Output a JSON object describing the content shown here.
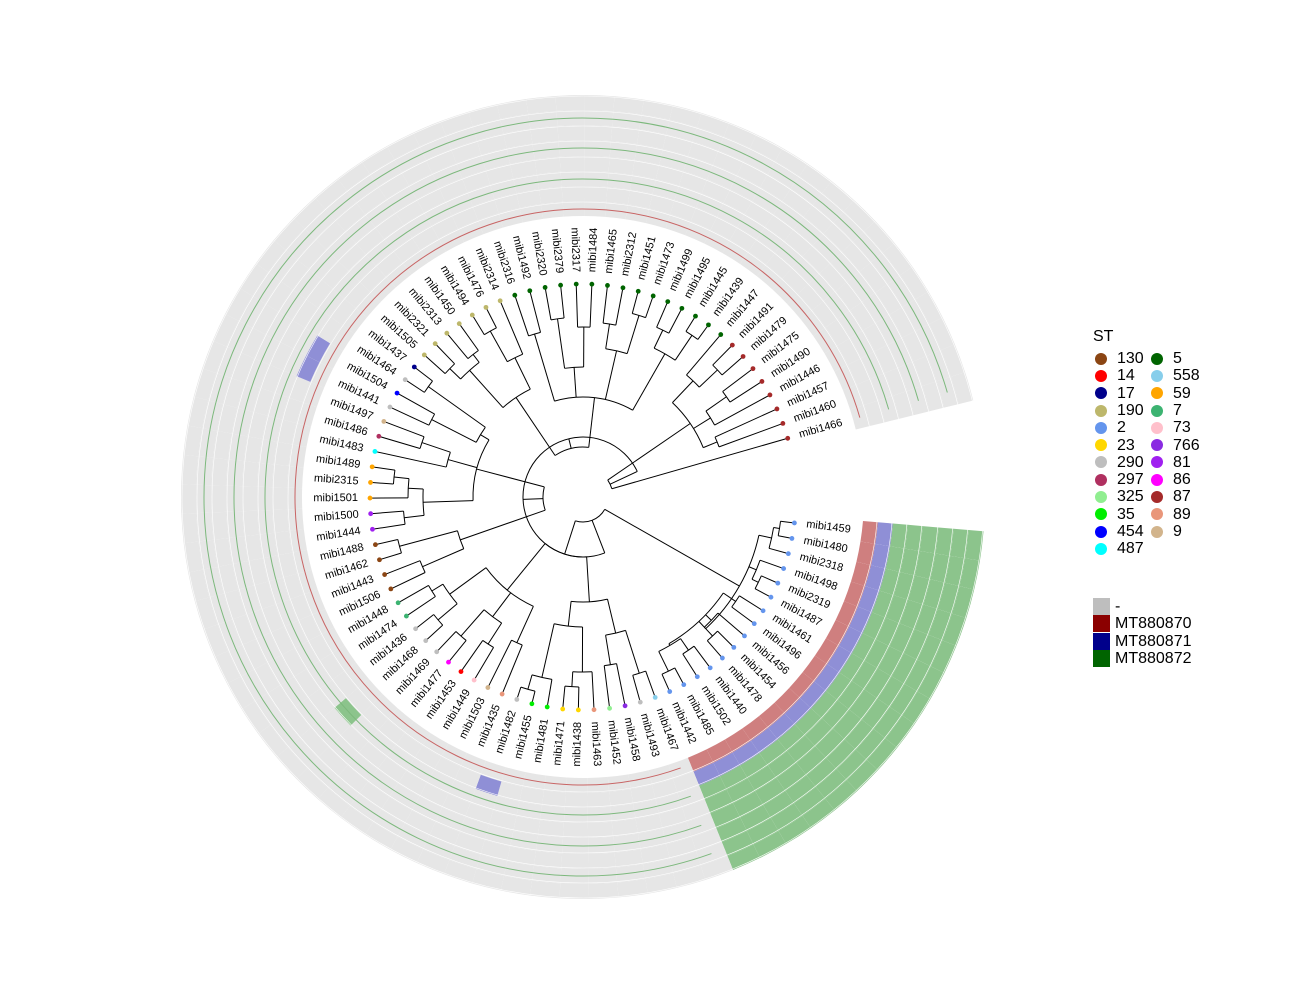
{
  "tree": {
    "leaves": [
      {
        "label": "mibi1459",
        "st": "2"
      },
      {
        "label": "mibi1480",
        "st": "2"
      },
      {
        "label": "mibi2318",
        "st": "2"
      },
      {
        "label": "mibi1498",
        "st": "2"
      },
      {
        "label": "mibi2319",
        "st": "2"
      },
      {
        "label": "mibi1487",
        "st": "2"
      },
      {
        "label": "mibi1461",
        "st": "2"
      },
      {
        "label": "mibi1496",
        "st": "2"
      },
      {
        "label": "mibi1456",
        "st": "2"
      },
      {
        "label": "mibi1454",
        "st": "2"
      },
      {
        "label": "mibi1478",
        "st": "2"
      },
      {
        "label": "mibi1440",
        "st": "2"
      },
      {
        "label": "mibi1502",
        "st": "2"
      },
      {
        "label": "mibi1485",
        "st": "2"
      },
      {
        "label": "mibi1442",
        "st": "2"
      },
      {
        "label": "mibi1467",
        "st": "558"
      },
      {
        "label": "mibi1493",
        "st": "290"
      },
      {
        "label": "mibi1458",
        "st": "766"
      },
      {
        "label": "mibi1452",
        "st": "325"
      },
      {
        "label": "mibi1463",
        "st": "89"
      },
      {
        "label": "mibi1438",
        "st": "23"
      },
      {
        "label": "mibi1471",
        "st": "23"
      },
      {
        "label": "mibi1481",
        "st": "35"
      },
      {
        "label": "mibi1455",
        "st": "35"
      },
      {
        "label": "mibi1482",
        "st": "290"
      },
      {
        "label": "mibi1435",
        "st": "89"
      },
      {
        "label": "mibi1503",
        "st": "9"
      },
      {
        "label": "mibi1449",
        "st": "73"
      },
      {
        "label": "mibi1453",
        "st": "14"
      },
      {
        "label": "mibi1477",
        "st": "86"
      },
      {
        "label": "mibi1469",
        "st": "290"
      },
      {
        "label": "mibi1468",
        "st": "290"
      },
      {
        "label": "mibi1436",
        "st": "290"
      },
      {
        "label": "mibi1474",
        "st": "7"
      },
      {
        "label": "mibi1448",
        "st": "7"
      },
      {
        "label": "mibi1506",
        "st": "130"
      },
      {
        "label": "mibi1443",
        "st": "130"
      },
      {
        "label": "mibi1462",
        "st": "130"
      },
      {
        "label": "mibi1488",
        "st": "130"
      },
      {
        "label": "mibi1444",
        "st": "81"
      },
      {
        "label": "mibi1500",
        "st": "81"
      },
      {
        "label": "mibi1501",
        "st": "59"
      },
      {
        "label": "mibi2315",
        "st": "59"
      },
      {
        "label": "mibi1489",
        "st": "59"
      },
      {
        "label": "mibi1483",
        "st": "487"
      },
      {
        "label": "mibi1486",
        "st": "297"
      },
      {
        "label": "mibi1497",
        "st": "9"
      },
      {
        "label": "mibi1441",
        "st": "290"
      },
      {
        "label": "mibi1504",
        "st": "454"
      },
      {
        "label": "mibi1464",
        "st": "290"
      },
      {
        "label": "mibi1437",
        "st": "17"
      },
      {
        "label": "mibi1505",
        "st": "190"
      },
      {
        "label": "mibi2321",
        "st": "190"
      },
      {
        "label": "mibi2313",
        "st": "190"
      },
      {
        "label": "mibi1450",
        "st": "190"
      },
      {
        "label": "mibi1494",
        "st": "190"
      },
      {
        "label": "mibi1476",
        "st": "190"
      },
      {
        "label": "mibi2314",
        "st": "190"
      },
      {
        "label": "mibi2316",
        "st": "5"
      },
      {
        "label": "mibi1492",
        "st": "5"
      },
      {
        "label": "mibi2320",
        "st": "5"
      },
      {
        "label": "mibi2379",
        "st": "5"
      },
      {
        "label": "mibi2317",
        "st": "5"
      },
      {
        "label": "mibi1484",
        "st": "5"
      },
      {
        "label": "mibi1465",
        "st": "5"
      },
      {
        "label": "mibi2312",
        "st": "5"
      },
      {
        "label": "mibi1451",
        "st": "5"
      },
      {
        "label": "mibi1473",
        "st": "5"
      },
      {
        "label": "mibi1499",
        "st": "5"
      },
      {
        "label": "mibi1495",
        "st": "5"
      },
      {
        "label": "mibi1445",
        "st": "5"
      },
      {
        "label": "mibi1439",
        "st": "5"
      },
      {
        "label": "mibi1447",
        "st": "5"
      },
      {
        "label": "mibi1491",
        "st": "87"
      },
      {
        "label": "mibi1479",
        "st": "87"
      },
      {
        "label": "mibi1475",
        "st": "87"
      },
      {
        "label": "mibi1490",
        "st": "87"
      },
      {
        "label": "mibi1446",
        "st": "87"
      },
      {
        "label": "mibi1457",
        "st": "87"
      },
      {
        "label": "mibi1460",
        "st": "87"
      },
      {
        "label": "mibi1466",
        "st": "87"
      }
    ]
  },
  "legend_st": {
    "title": "ST",
    "items": [
      {
        "label": "130",
        "color": "#8B4513"
      },
      {
        "label": "14",
        "color": "#FF0000"
      },
      {
        "label": "17",
        "color": "#00008B"
      },
      {
        "label": "190",
        "color": "#BDB76B"
      },
      {
        "label": "2",
        "color": "#6495ED"
      },
      {
        "label": "23",
        "color": "#FFD700"
      },
      {
        "label": "290",
        "color": "#BEBEBE"
      },
      {
        "label": "297",
        "color": "#B03060"
      },
      {
        "label": "325",
        "color": "#90EE90"
      },
      {
        "label": "35",
        "color": "#00EE00"
      },
      {
        "label": "454",
        "color": "#0000FF"
      },
      {
        "label": "487",
        "color": "#00FFFF"
      },
      {
        "label": "5",
        "color": "#006400"
      },
      {
        "label": "558",
        "color": "#87CEEB"
      },
      {
        "label": "59",
        "color": "#FFA500"
      },
      {
        "label": "7",
        "color": "#3CB371"
      },
      {
        "label": "73",
        "color": "#FFC0CB"
      },
      {
        "label": "766",
        "color": "#8A2BE2"
      },
      {
        "label": "81",
        "color": "#A020F0"
      },
      {
        "label": "86",
        "color": "#FF00FF"
      },
      {
        "label": "87",
        "color": "#A52A2A"
      },
      {
        "label": "89",
        "color": "#E9967A"
      },
      {
        "label": "9",
        "color": "#D2B48C"
      }
    ]
  },
  "legend_genes": {
    "items": [
      {
        "label": "-",
        "color": "#BEBEBE"
      },
      {
        "label": "MT880870",
        "color": "#8B0000"
      },
      {
        "label": "MT880871",
        "color": "#00008B"
      },
      {
        "label": "MT880872",
        "color": "#006400"
      }
    ]
  }
}
